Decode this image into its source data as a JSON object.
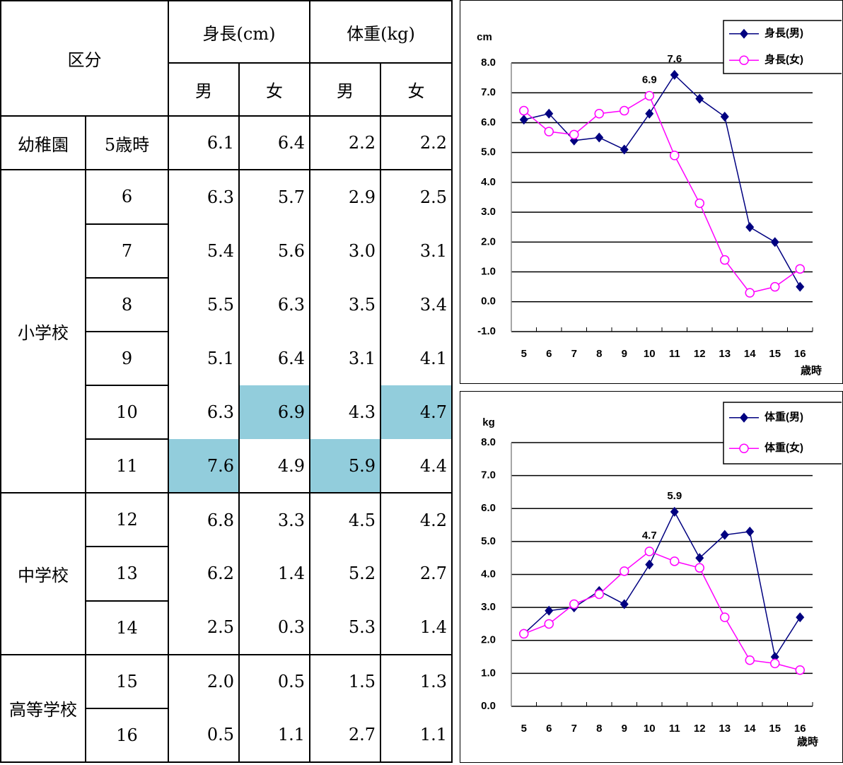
{
  "table": {
    "header": {
      "group": "区分",
      "height": "身長(cm)",
      "weight": "体重(kg)",
      "sub": [
        "男",
        "女",
        "男",
        "女"
      ]
    },
    "groups": [
      {
        "name": "幼稚園",
        "rows": [
          [
            "5歳時",
            "6.1",
            "6.4",
            "2.2",
            "2.2"
          ]
        ]
      },
      {
        "name": "小学校",
        "rows": [
          [
            "6",
            "6.3",
            "5.7",
            "2.9",
            "2.5"
          ],
          [
            "7",
            "5.4",
            "5.6",
            "3.0",
            "3.1"
          ],
          [
            "8",
            "5.5",
            "6.3",
            "3.5",
            "3.4"
          ],
          [
            "9",
            "5.1",
            "6.4",
            "3.1",
            "4.1"
          ],
          [
            "10",
            "6.3",
            "6.9",
            "4.3",
            "4.7"
          ],
          [
            "11",
            "7.6",
            "4.9",
            "5.9",
            "4.4"
          ]
        ]
      },
      {
        "name": "中学校",
        "rows": [
          [
            "12",
            "6.8",
            "3.3",
            "4.5",
            "4.2"
          ],
          [
            "13",
            "6.2",
            "1.4",
            "5.2",
            "2.7"
          ],
          [
            "14",
            "2.5",
            "0.3",
            "5.3",
            "1.4"
          ]
        ]
      },
      {
        "name": "高等学校",
        "rows": [
          [
            "15",
            "2.0",
            "0.5",
            "1.5",
            "1.3"
          ],
          [
            "16",
            "0.5",
            "1.1",
            "2.7",
            "1.1"
          ]
        ]
      }
    ]
  },
  "chart_data": [
    {
      "type": "line",
      "y_label": "cm",
      "x_label": "歳時",
      "categories": [
        "5",
        "6",
        "7",
        "8",
        "9",
        "10",
        "11",
        "12",
        "13",
        "14",
        "15",
        "16"
      ],
      "series": [
        {
          "name": "身長(男)",
          "color": "#000080",
          "marker": "diamond",
          "values": [
            6.1,
            6.3,
            5.4,
            5.5,
            5.1,
            6.3,
            7.6,
            6.8,
            6.2,
            2.5,
            2.0,
            0.5
          ]
        },
        {
          "name": "身長(女)",
          "color": "#ff00ff",
          "marker": "circle",
          "values": [
            6.4,
            5.7,
            5.6,
            6.3,
            6.4,
            6.9,
            4.9,
            3.3,
            1.4,
            0.3,
            0.5,
            1.1
          ]
        }
      ],
      "ylim": [
        -1,
        8
      ],
      "yticks": [
        {
          "value": -1,
          "label": "-1.0"
        },
        {
          "value": 0,
          "label": "0.0"
        },
        {
          "value": 1,
          "label": "1.0"
        },
        {
          "value": 2,
          "label": "2.0"
        },
        {
          "value": 3,
          "label": "3.0"
        },
        {
          "value": 4,
          "label": "4.0"
        },
        {
          "value": 5,
          "label": "5.0"
        },
        {
          "value": 6,
          "label": "6.0"
        },
        {
          "value": 7,
          "label": "7.0"
        },
        {
          "value": 8,
          "label": "8.0"
        }
      ],
      "grid": true,
      "legend": "top-right",
      "label_max": true
    },
    {
      "type": "line",
      "y_label": "kg",
      "x_label": "歳時",
      "categories": [
        "5",
        "6",
        "7",
        "8",
        "9",
        "10",
        "11",
        "12",
        "13",
        "14",
        "15",
        "16"
      ],
      "series": [
        {
          "name": "体重(男)",
          "color": "#000080",
          "marker": "diamond",
          "values": [
            2.2,
            2.9,
            3.0,
            3.5,
            3.1,
            4.3,
            5.9,
            4.5,
            5.2,
            5.3,
            1.5,
            2.7
          ]
        },
        {
          "name": "体重(女)",
          "color": "#ff00ff",
          "marker": "circle",
          "values": [
            2.2,
            2.5,
            3.1,
            3.4,
            4.1,
            4.7,
            4.4,
            4.2,
            2.7,
            1.4,
            1.3,
            1.1
          ]
        }
      ],
      "ylim": [
        0,
        8
      ],
      "yticks": [
        {
          "value": 0,
          "label": "0.0"
        },
        {
          "value": 1,
          "label": "1.0"
        },
        {
          "value": 2,
          "label": "2.0"
        },
        {
          "value": 3,
          "label": "3.0"
        },
        {
          "value": 4,
          "label": "4.0"
        },
        {
          "value": 5,
          "label": "5.0"
        },
        {
          "value": 6,
          "label": "6.0"
        },
        {
          "value": 7,
          "label": "7.0"
        },
        {
          "value": 8,
          "label": "8.0"
        }
      ],
      "grid": true,
      "legend": "top-right",
      "label_max": true
    }
  ]
}
